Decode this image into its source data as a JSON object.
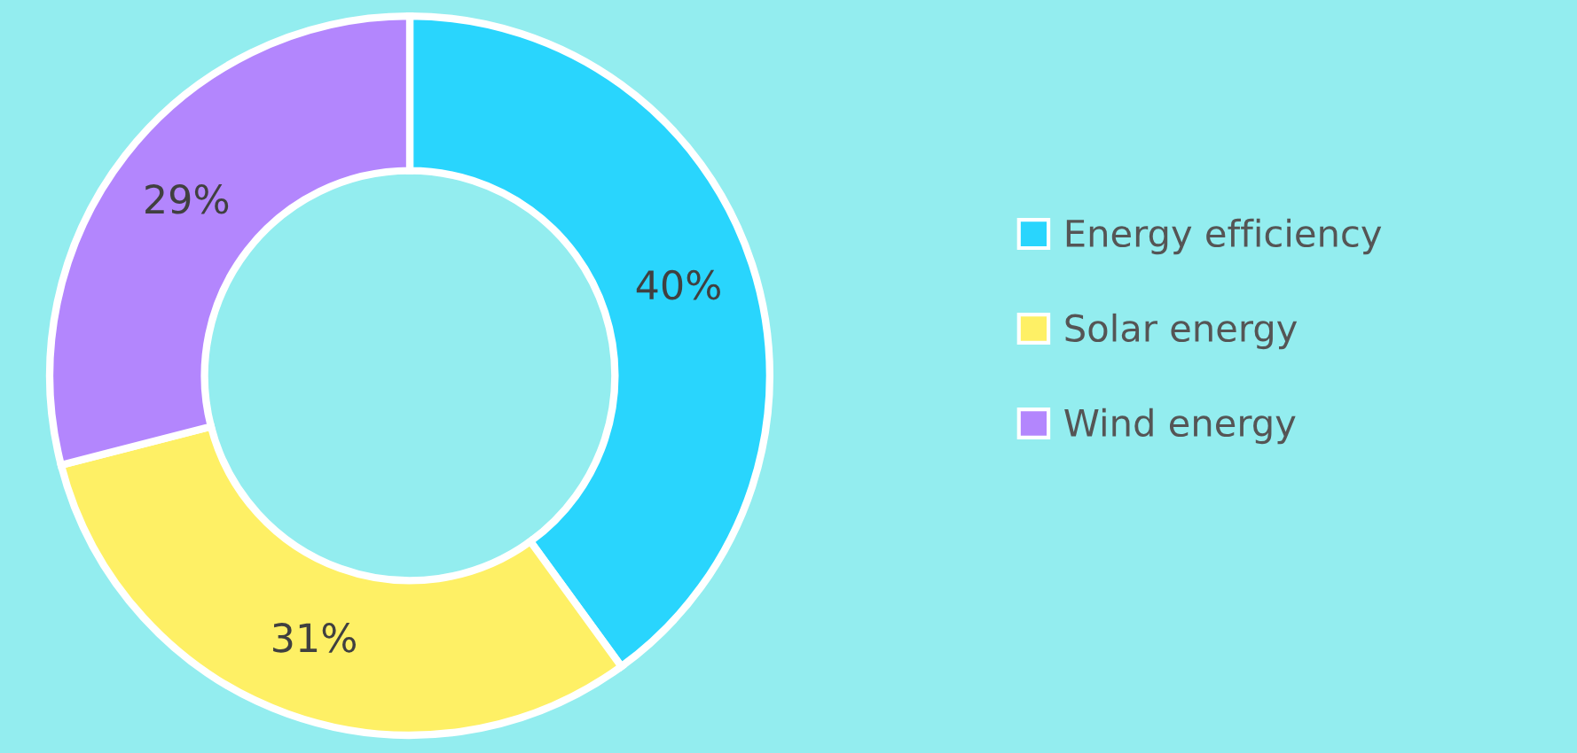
{
  "chart_data": {
    "type": "donut",
    "categories": [
      "Energy efficiency",
      "Solar energy",
      "Wind energy"
    ],
    "values": [
      40,
      31,
      29
    ],
    "colors": [
      "#29d5fd",
      "#fef065",
      "#b386fd"
    ],
    "value_labels": [
      "40%",
      "31%",
      "29%"
    ],
    "legend": "right"
  }
}
